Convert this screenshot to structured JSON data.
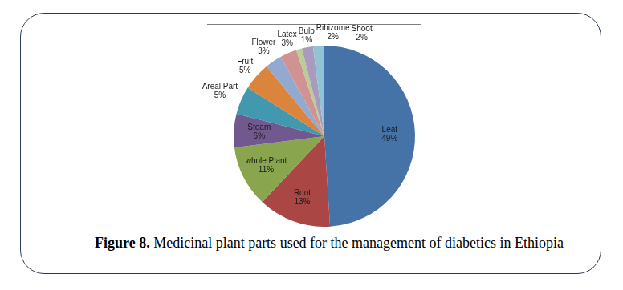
{
  "chart_data": {
    "type": "pie",
    "title": "Figure 8. Medicinal plant parts used for the management of diabetics in Ethiopia",
    "categories": [
      "Leaf",
      "Root",
      "whole Plant",
      "Steam",
      "Areal Part",
      "Fruit",
      "Flower",
      "Latex",
      "Bulb",
      "Rihizome",
      "Shoot"
    ],
    "values": [
      49,
      13,
      11,
      6,
      5,
      5,
      3,
      3,
      1,
      2,
      2
    ],
    "value_labels": [
      "49%",
      "13%",
      "11%",
      "6%",
      "5%",
      "5%",
      "3%",
      "3%",
      "1%",
      "2%",
      "2%"
    ],
    "colors": [
      "#4572a7",
      "#aa4643",
      "#89a54e",
      "#71588f",
      "#4198af",
      "#db843d",
      "#93a9cf",
      "#d19392",
      "#b9cd96",
      "#a99bbd",
      "#91c3d5"
    ],
    "data_labels": true
  }
}
